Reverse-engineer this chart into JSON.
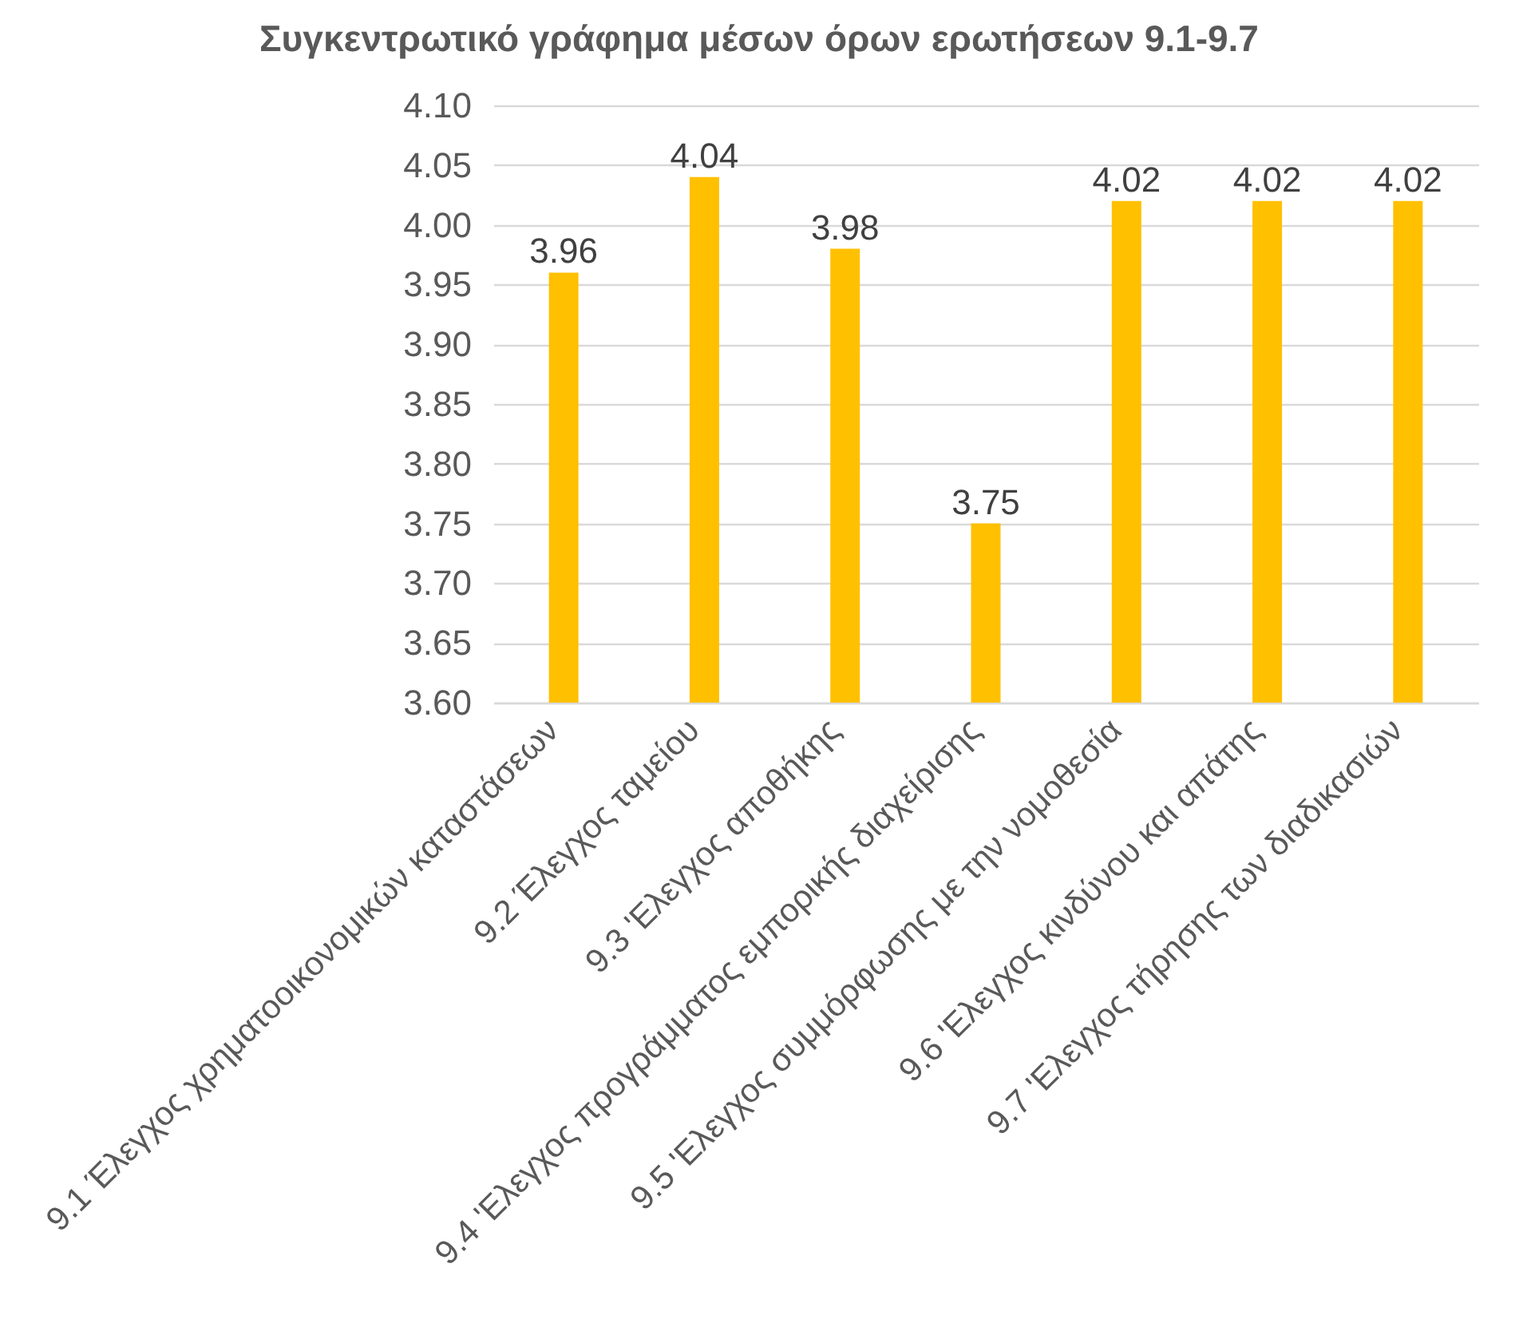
{
  "chart_data": {
    "type": "bar",
    "title": "Συγκεντρωτικό γράφημα μέσων όρων ερωτήσεων 9.1-9.7",
    "categories": [
      "9.1 Έλεγχος χρηματοοικονομικών καταστάσεων",
      "9.2 Έλεγχος ταμείου",
      "9.3 'Ελεγχος αποθήκης",
      "9.4 'Ελεγχος προγράμματος εμπορικής διαχείρισης",
      "9.5 'Ελεγχος συμμόρφωσης με την νομοθεσία",
      "9.6 'Ελεγχος κινδύνου και απάτης",
      "9.7 'Ελεγχος τήρησης των διαδικασιών"
    ],
    "values": [
      3.96,
      4.04,
      3.98,
      3.75,
      4.02,
      4.02,
      4.02
    ],
    "color": "#ffc000",
    "ylim": [
      3.6,
      4.1
    ],
    "yticks": [
      {
        "value": 3.6,
        "label": "3.60"
      },
      3.65,
      {
        "value": 3.7,
        "label": "3.70"
      },
      3.75,
      {
        "value": 3.8,
        "label": "3.80"
      },
      3.85,
      {
        "value": 3.9,
        "label": "3.90"
      },
      3.95,
      {
        "value": 4.0,
        "label": "4.00"
      },
      4.05,
      {
        "value": 4.1,
        "label": "4.10"
      }
    ],
    "grid": "y",
    "data_labels": true
  }
}
